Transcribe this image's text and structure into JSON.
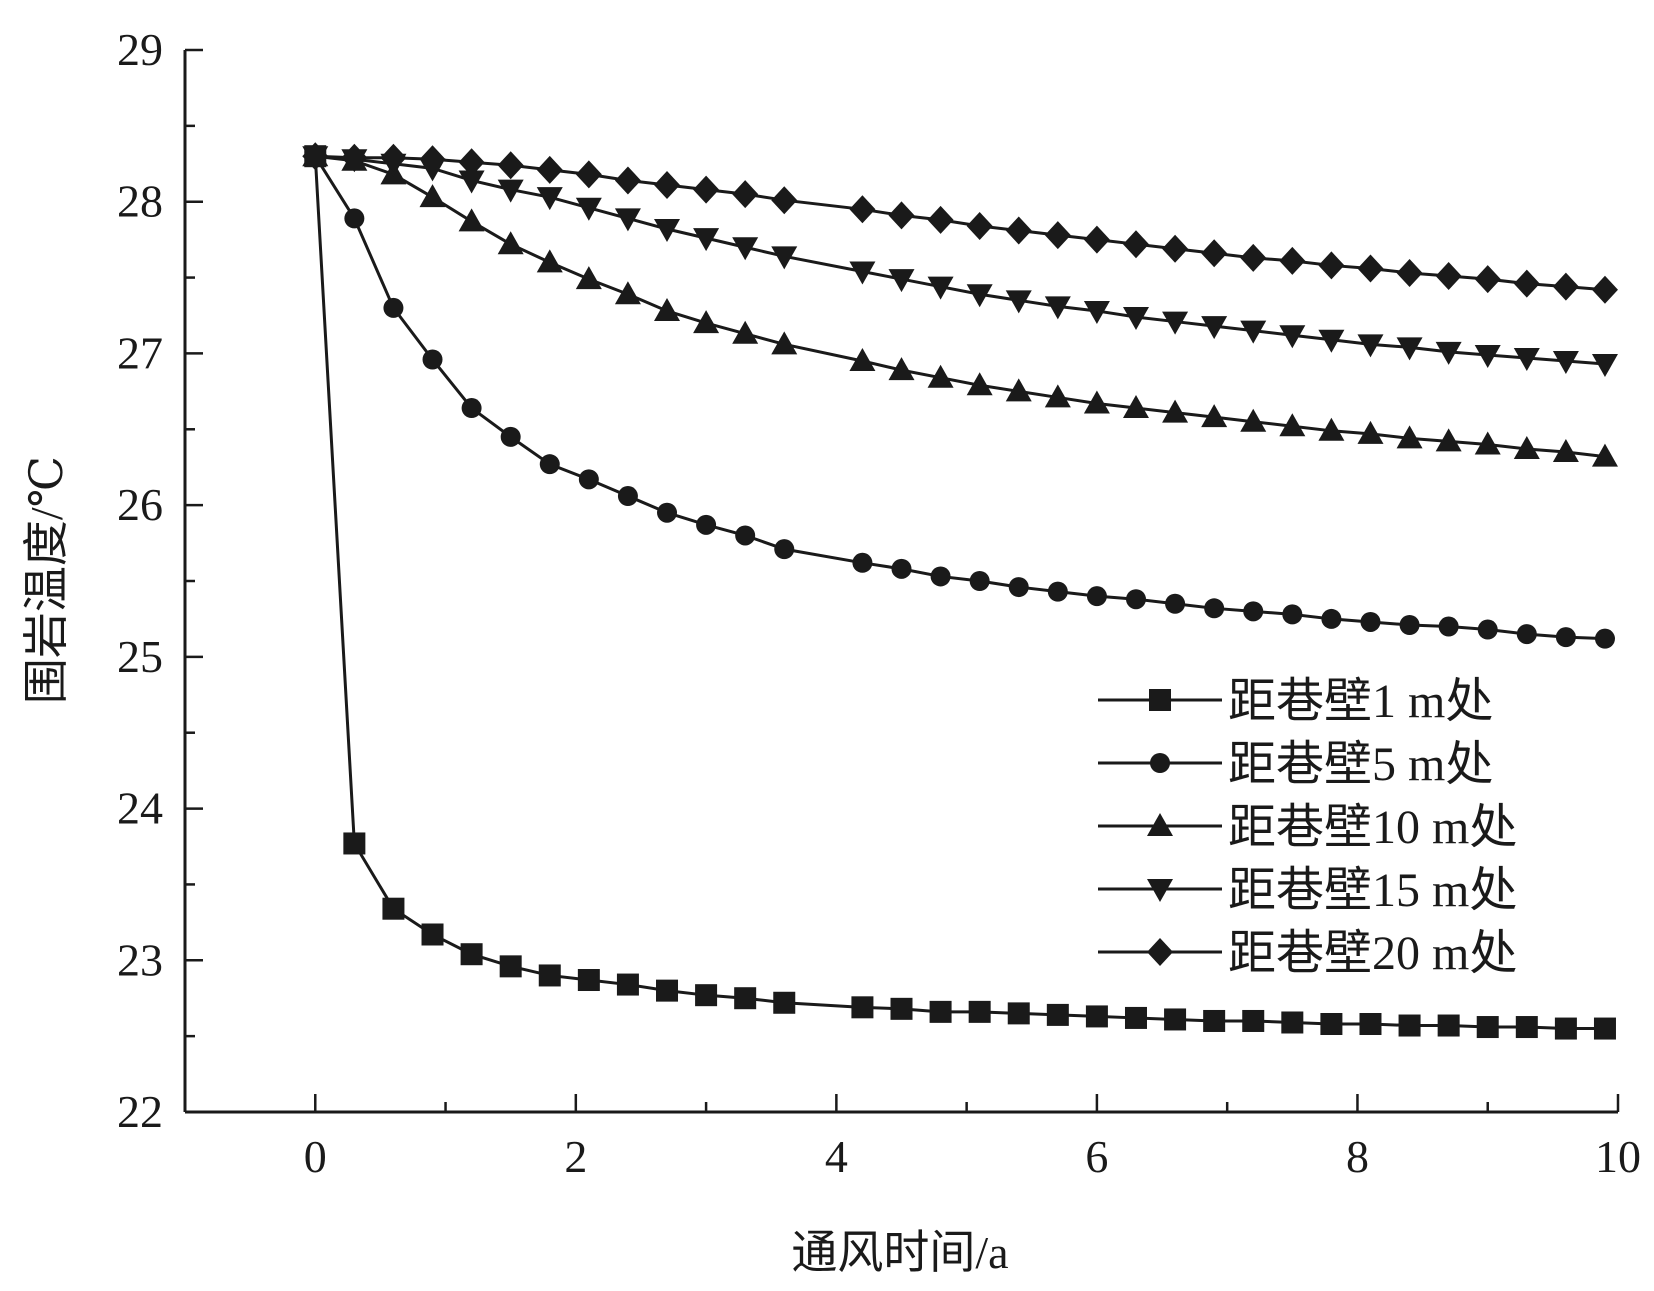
{
  "chart_data": {
    "type": "line",
    "xlabel": "通风时间/a",
    "ylabel": "围岩温度/℃",
    "xlim": [
      -1,
      10
    ],
    "ylim": [
      22,
      29
    ],
    "x_ticks": [
      0,
      2,
      4,
      6,
      8,
      10
    ],
    "y_ticks": [
      22,
      23,
      24,
      25,
      26,
      27,
      28,
      29
    ],
    "grid": false,
    "legend_position": "right",
    "series": [
      {
        "name": "距巷壁1 m处",
        "marker": "square",
        "x": [
          0,
          0.3,
          0.6,
          0.9,
          1.2,
          1.5,
          1.8,
          2.1,
          2.4,
          2.7,
          3.0,
          3.3,
          3.6,
          4.2,
          4.5,
          4.8,
          5.1,
          5.4,
          5.7,
          6.0,
          6.3,
          6.6,
          6.9,
          7.2,
          7.5,
          7.8,
          8.1,
          8.4,
          8.7,
          9.0,
          9.3,
          9.6,
          9.9
        ],
        "values": [
          28.3,
          23.77,
          23.34,
          23.17,
          23.04,
          22.96,
          22.9,
          22.87,
          22.84,
          22.8,
          22.77,
          22.75,
          22.72,
          22.69,
          22.68,
          22.66,
          22.66,
          22.65,
          22.64,
          22.63,
          22.62,
          22.61,
          22.6,
          22.6,
          22.59,
          22.58,
          22.58,
          22.57,
          22.57,
          22.56,
          22.56,
          22.55,
          22.55
        ]
      },
      {
        "name": "距巷壁5 m处",
        "marker": "circle",
        "x": [
          0,
          0.3,
          0.6,
          0.9,
          1.2,
          1.5,
          1.8,
          2.1,
          2.4,
          2.7,
          3.0,
          3.3,
          3.6,
          4.2,
          4.5,
          4.8,
          5.1,
          5.4,
          5.7,
          6.0,
          6.3,
          6.6,
          6.9,
          7.2,
          7.5,
          7.8,
          8.1,
          8.4,
          8.7,
          9.0,
          9.3,
          9.6,
          9.9
        ],
        "values": [
          28.3,
          27.89,
          27.3,
          26.96,
          26.64,
          26.45,
          26.27,
          26.17,
          26.06,
          25.95,
          25.87,
          25.8,
          25.71,
          25.62,
          25.58,
          25.53,
          25.5,
          25.46,
          25.43,
          25.4,
          25.38,
          25.35,
          25.32,
          25.3,
          25.28,
          25.25,
          25.23,
          25.21,
          25.2,
          25.18,
          25.15,
          25.13,
          25.12
        ]
      },
      {
        "name": "距巷壁10 m处",
        "marker": "triangle-up",
        "x": [
          0,
          0.3,
          0.6,
          0.9,
          1.2,
          1.5,
          1.8,
          2.1,
          2.4,
          2.7,
          3.0,
          3.3,
          3.6,
          4.2,
          4.5,
          4.8,
          5.1,
          5.4,
          5.7,
          6.0,
          6.3,
          6.6,
          6.9,
          7.2,
          7.5,
          7.8,
          8.1,
          8.4,
          8.7,
          9.0,
          9.3,
          9.6,
          9.9
        ],
        "values": [
          28.3,
          28.27,
          28.18,
          28.03,
          27.87,
          27.72,
          27.6,
          27.49,
          27.39,
          27.28,
          27.2,
          27.13,
          27.06,
          26.95,
          26.89,
          26.84,
          26.79,
          26.75,
          26.71,
          26.67,
          26.64,
          26.61,
          26.58,
          26.55,
          26.52,
          26.49,
          26.47,
          26.44,
          26.42,
          26.4,
          26.37,
          26.35,
          26.32
        ]
      },
      {
        "name": "距巷壁15 m处",
        "marker": "triangle-down",
        "x": [
          0,
          0.3,
          0.6,
          0.9,
          1.2,
          1.5,
          1.8,
          2.1,
          2.4,
          2.7,
          3.0,
          3.3,
          3.6,
          4.2,
          4.5,
          4.8,
          5.1,
          5.4,
          5.7,
          6.0,
          6.3,
          6.6,
          6.9,
          7.2,
          7.5,
          7.8,
          8.1,
          8.4,
          8.7,
          9.0,
          9.3,
          9.6,
          9.9
        ],
        "values": [
          28.3,
          28.28,
          28.25,
          28.22,
          28.14,
          28.08,
          28.03,
          27.96,
          27.89,
          27.82,
          27.76,
          27.7,
          27.64,
          27.54,
          27.49,
          27.44,
          27.39,
          27.35,
          27.31,
          27.28,
          27.24,
          27.21,
          27.18,
          27.15,
          27.12,
          27.09,
          27.06,
          27.04,
          27.01,
          26.99,
          26.97,
          26.95,
          26.93
        ]
      },
      {
        "name": "距巷壁20 m处",
        "marker": "diamond",
        "x": [
          0,
          0.3,
          0.6,
          0.9,
          1.2,
          1.5,
          1.8,
          2.1,
          2.4,
          2.7,
          3.0,
          3.3,
          3.6,
          4.2,
          4.5,
          4.8,
          5.1,
          5.4,
          5.7,
          6.0,
          6.3,
          6.6,
          6.9,
          7.2,
          7.5,
          7.8,
          8.1,
          8.4,
          8.7,
          9.0,
          9.3,
          9.6,
          9.9
        ],
        "values": [
          28.3,
          28.29,
          28.29,
          28.28,
          28.26,
          28.24,
          28.21,
          28.18,
          28.14,
          28.11,
          28.08,
          28.05,
          28.01,
          27.95,
          27.91,
          27.88,
          27.84,
          27.81,
          27.78,
          27.75,
          27.72,
          27.69,
          27.66,
          27.63,
          27.61,
          27.58,
          27.56,
          27.53,
          27.51,
          27.49,
          27.46,
          27.44,
          27.42
        ]
      }
    ]
  }
}
